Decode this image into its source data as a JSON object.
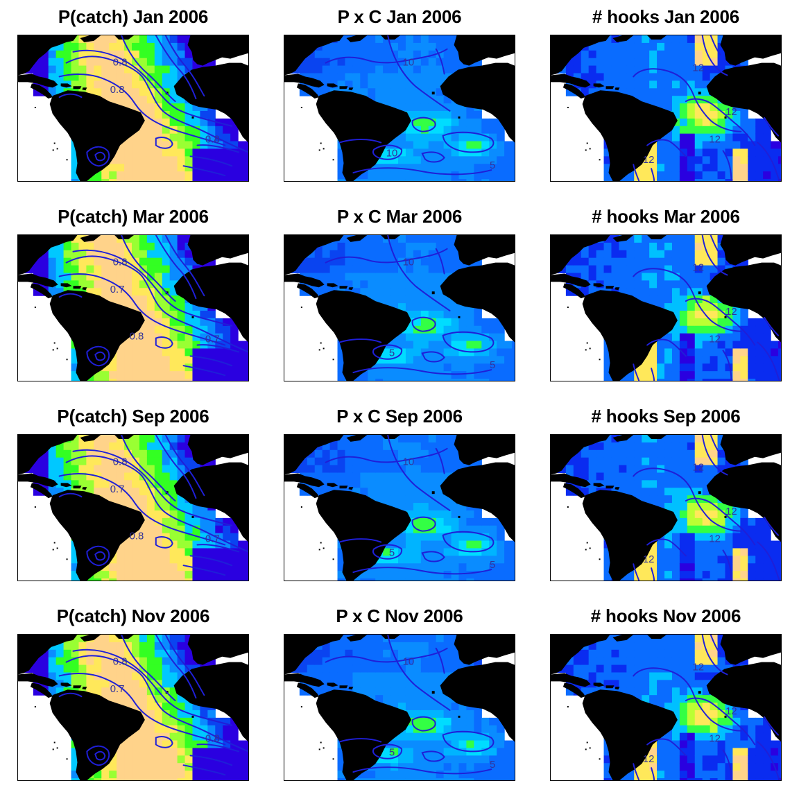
{
  "figure": {
    "panels": [
      {
        "title": "P(catch) Jan 2006",
        "variable": "pcatch",
        "month": "Jan",
        "year": "2006",
        "labels": [
          "0.8",
          "0.8",
          "0.8"
        ]
      },
      {
        "title": "P x C Jan 2006",
        "variable": "pxc",
        "month": "Jan",
        "year": "2006",
        "labels": [
          "10",
          "10",
          "5"
        ]
      },
      {
        "title": "# hooks Jan 2006",
        "variable": "hooks",
        "month": "Jan",
        "year": "2006",
        "labels": [
          "12",
          "12",
          "12",
          "12"
        ]
      },
      {
        "title": "P(catch) Mar 2006",
        "variable": "pcatch",
        "month": "Mar",
        "year": "2006",
        "labels": [
          "0.8",
          "0.7",
          "0.7",
          "0.8"
        ]
      },
      {
        "title": "P x C Mar 2006",
        "variable": "pxc",
        "month": "Mar",
        "year": "2006",
        "labels": [
          "10",
          "5",
          "5"
        ]
      },
      {
        "title": "# hooks Mar 2006",
        "variable": "hooks",
        "month": "Mar",
        "year": "2006",
        "labels": [
          "12",
          "12",
          "12"
        ]
      },
      {
        "title": "P(catch) Sep 2006",
        "variable": "pcatch",
        "month": "Sep",
        "year": "2006",
        "labels": [
          "0.8",
          "0.7",
          "0.7",
          "0.8"
        ]
      },
      {
        "title": "P x C Sep 2006",
        "variable": "pxc",
        "month": "Sep",
        "year": "2006",
        "labels": [
          "10",
          "5",
          "5"
        ]
      },
      {
        "title": "# hooks Sep 2006",
        "variable": "hooks",
        "month": "Sep",
        "year": "2006",
        "labels": [
          "12",
          "12",
          "12",
          "12"
        ]
      },
      {
        "title": "P(catch) Nov 2006",
        "variable": "pcatch",
        "month": "Nov",
        "year": "2006",
        "labels": [
          "0.8",
          "0.7",
          "0.8"
        ]
      },
      {
        "title": "P x C Nov 2006",
        "variable": "pxc",
        "month": "Nov",
        "year": "2006",
        "labels": [
          "10",
          "5",
          "5"
        ]
      },
      {
        "title": "# hooks Nov 2006",
        "variable": "hooks",
        "month": "Nov",
        "year": "2006",
        "labels": [
          "12",
          "12",
          "12",
          "12"
        ]
      }
    ],
    "colors": {
      "land": "#000000",
      "contour": "#1f1fd8",
      "pcatch_palette": [
        "#2a00e0",
        "#0a44f0",
        "#0a8cff",
        "#00c8ff",
        "#33ff22",
        "#99ff33",
        "#ffe85a",
        "#ffd38a"
      ],
      "pxc_palette": [
        "#0a44f0",
        "#0a6cff",
        "#0a8cff",
        "#00b4ff",
        "#00dcff",
        "#33ff44"
      ],
      "hooks_palette": [
        "#2a00e0",
        "#0a2cf0",
        "#0a6cff",
        "#00c0ff",
        "#33ff44",
        "#bbff33",
        "#ffe85a",
        "#ffd38a"
      ]
    }
  }
}
